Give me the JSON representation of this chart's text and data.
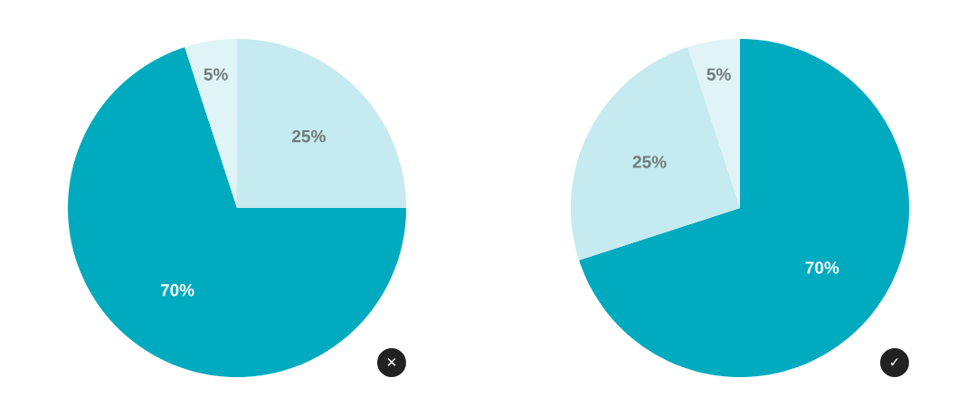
{
  "chart_data": [
    {
      "type": "pie",
      "categories": [
        null,
        null,
        null
      ],
      "values": [
        25,
        70,
        5
      ],
      "colors": [
        "#c5eaef",
        "#00aabf",
        "#e0f3f6"
      ],
      "value_labels": [
        "25%",
        "70%",
        "5%"
      ],
      "annotations": [
        "✕"
      ]
    },
    {
      "type": "pie",
      "categories": [
        null,
        null,
        null
      ],
      "values": [
        70,
        25,
        5
      ],
      "colors": [
        "#00aabf",
        "#c5eaef",
        "#e0f3f6"
      ],
      "value_labels": [
        "70%",
        "25%",
        "5%"
      ],
      "annotations": [
        "✓"
      ]
    }
  ]
}
